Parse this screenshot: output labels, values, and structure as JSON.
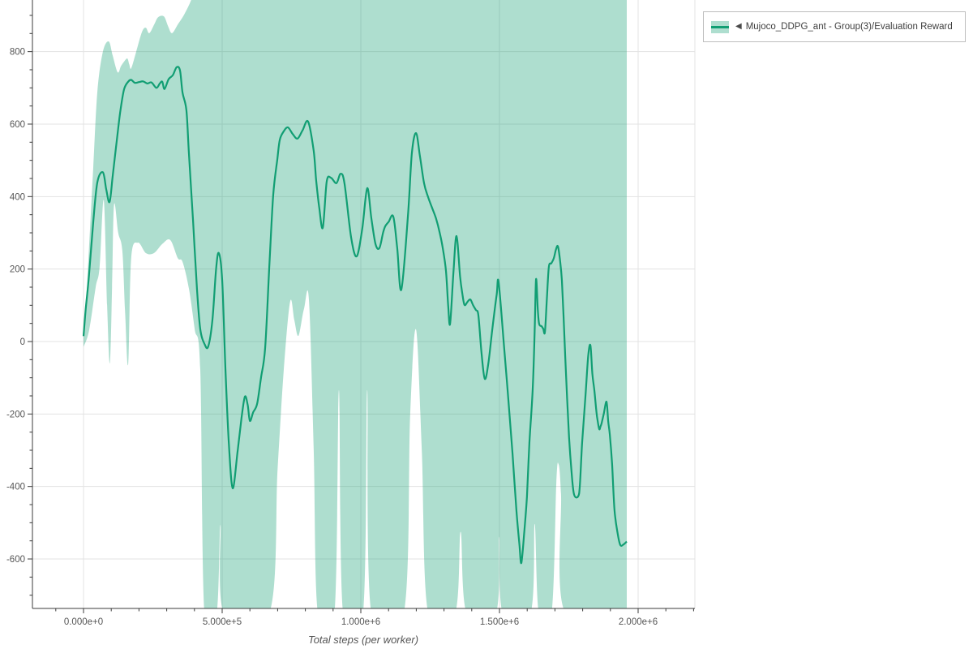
{
  "legend": {
    "arrow": "◀",
    "label": "Mujoco_DDPG_ant - Group(3)/Evaluation Reward"
  },
  "axes": {
    "x": {
      "title": "Total steps (per worker)",
      "major_ticks_k": [
        0,
        500,
        1000,
        1500,
        2000
      ],
      "tick_labels": [
        "0.000e+0",
        "5.000e+5",
        "1.000e+6",
        "1.500e+6",
        "2.000e+6"
      ],
      "minor_step_k": 100,
      "minor_range_k": [
        -100,
        2200
      ]
    },
    "y": {
      "major_ticks": [
        800,
        600,
        400,
        200,
        0,
        -200,
        -400,
        -600
      ],
      "tick_labels": [
        "800",
        "600",
        "400",
        "200",
        "0",
        "-200",
        "-400",
        "-600"
      ],
      "minor_step": 50,
      "minor_range": [
        -700,
        900
      ]
    }
  },
  "colors": {
    "line": "#119e73",
    "band": "rgba(17,158,115,0.34)",
    "grid": "#e3e3e3",
    "axis": "#3b3b3b",
    "tick_label": "#555555"
  },
  "chart_data": {
    "type": "line",
    "title": "",
    "xlabel": "Total steps (per worker)",
    "ylabel": "",
    "legend_position": "top-right",
    "grid": true,
    "x_unit": "steps (values below in thousands of steps)",
    "xlim_k": [
      -184,
      2205
    ],
    "ylim": [
      -736,
      945
    ],
    "series": [
      {
        "name": "Mujoco_DDPG_ant - Group(3)/Evaluation Reward",
        "mean": [
          [
            0,
            15
          ],
          [
            8,
            90
          ],
          [
            20,
            184
          ],
          [
            35,
            330
          ],
          [
            50,
            440
          ],
          [
            70,
            467
          ],
          [
            82,
            420
          ],
          [
            94,
            385
          ],
          [
            105,
            455
          ],
          [
            117,
            535
          ],
          [
            132,
            631
          ],
          [
            146,
            695
          ],
          [
            161,
            717
          ],
          [
            172,
            722
          ],
          [
            185,
            714
          ],
          [
            200,
            716
          ],
          [
            215,
            718
          ],
          [
            230,
            712
          ],
          [
            245,
            715
          ],
          [
            263,
            700
          ],
          [
            275,
            712
          ],
          [
            284,
            717
          ],
          [
            292,
            697
          ],
          [
            307,
            724
          ],
          [
            322,
            735
          ],
          [
            336,
            757
          ],
          [
            348,
            748
          ],
          [
            357,
            687
          ],
          [
            371,
            638
          ],
          [
            380,
            519
          ],
          [
            395,
            333
          ],
          [
            409,
            146
          ],
          [
            421,
            34
          ],
          [
            437,
            -8
          ],
          [
            450,
            -13
          ],
          [
            465,
            60
          ],
          [
            478,
            200
          ],
          [
            488,
            244
          ],
          [
            500,
            170
          ],
          [
            512,
            -80
          ],
          [
            524,
            -280
          ],
          [
            538,
            -405
          ],
          [
            556,
            -300
          ],
          [
            570,
            -210
          ],
          [
            582,
            -152
          ],
          [
            592,
            -175
          ],
          [
            600,
            -219
          ],
          [
            612,
            -195
          ],
          [
            626,
            -172
          ],
          [
            640,
            -100
          ],
          [
            655,
            -18
          ],
          [
            670,
            206
          ],
          [
            684,
            403
          ],
          [
            699,
            504
          ],
          [
            708,
            557
          ],
          [
            722,
            580
          ],
          [
            737,
            591
          ],
          [
            755,
            572
          ],
          [
            772,
            560
          ],
          [
            790,
            583
          ],
          [
            810,
            607
          ],
          [
            830,
            526
          ],
          [
            839,
            445
          ],
          [
            850,
            370
          ],
          [
            863,
            314
          ],
          [
            877,
            441
          ],
          [
            892,
            452
          ],
          [
            912,
            437
          ],
          [
            927,
            463
          ],
          [
            941,
            437
          ],
          [
            965,
            288
          ],
          [
            985,
            235
          ],
          [
            1005,
            310
          ],
          [
            1023,
            423
          ],
          [
            1038,
            340
          ],
          [
            1053,
            269
          ],
          [
            1067,
            258
          ],
          [
            1080,
            300
          ],
          [
            1088,
            318
          ],
          [
            1100,
            330
          ],
          [
            1117,
            345
          ],
          [
            1131,
            260
          ],
          [
            1146,
            143
          ],
          [
            1170,
            347
          ],
          [
            1184,
            519
          ],
          [
            1199,
            575
          ],
          [
            1213,
            513
          ],
          [
            1228,
            437
          ],
          [
            1242,
            400
          ],
          [
            1257,
            369
          ],
          [
            1271,
            340
          ],
          [
            1284,
            302
          ],
          [
            1295,
            260
          ],
          [
            1307,
            195
          ],
          [
            1315,
            100
          ],
          [
            1322,
            49
          ],
          [
            1334,
            190
          ],
          [
            1345,
            291
          ],
          [
            1358,
            180
          ],
          [
            1366,
            132
          ],
          [
            1374,
            101
          ],
          [
            1385,
            110
          ],
          [
            1395,
            116
          ],
          [
            1405,
            100
          ],
          [
            1415,
            87
          ],
          [
            1424,
            72
          ],
          [
            1435,
            -30
          ],
          [
            1447,
            -103
          ],
          [
            1460,
            -60
          ],
          [
            1475,
            40
          ],
          [
            1490,
            130
          ],
          [
            1497,
            163
          ],
          [
            1517,
            -18
          ],
          [
            1532,
            -159
          ],
          [
            1547,
            -309
          ],
          [
            1561,
            -466
          ],
          [
            1572,
            -560
          ],
          [
            1579,
            -611
          ],
          [
            1590,
            -520
          ],
          [
            1599,
            -428
          ],
          [
            1608,
            -280
          ],
          [
            1620,
            -130
          ],
          [
            1627,
            30
          ],
          [
            1632,
            172
          ],
          [
            1638,
            90
          ],
          [
            1643,
            49
          ],
          [
            1652,
            42
          ],
          [
            1658,
            35
          ],
          [
            1664,
            27
          ],
          [
            1671,
            120
          ],
          [
            1678,
            206
          ],
          [
            1687,
            216
          ],
          [
            1696,
            230
          ],
          [
            1704,
            255
          ],
          [
            1711,
            262
          ],
          [
            1719,
            220
          ],
          [
            1725,
            168
          ],
          [
            1731,
            72
          ],
          [
            1740,
            -92
          ],
          [
            1751,
            -264
          ],
          [
            1760,
            -360
          ],
          [
            1769,
            -422
          ],
          [
            1784,
            -427
          ],
          [
            1790,
            -395
          ],
          [
            1798,
            -280
          ],
          [
            1810,
            -152
          ],
          [
            1820,
            -40
          ],
          [
            1828,
            -11
          ],
          [
            1835,
            -90
          ],
          [
            1842,
            -134
          ],
          [
            1849,
            -190
          ],
          [
            1854,
            -219
          ],
          [
            1860,
            -242
          ],
          [
            1864,
            -235
          ],
          [
            1868,
            -226
          ],
          [
            1876,
            -200
          ],
          [
            1886,
            -166
          ],
          [
            1892,
            -220
          ],
          [
            1898,
            -257
          ],
          [
            1906,
            -338
          ],
          [
            1915,
            -466
          ],
          [
            1927,
            -533
          ],
          [
            1936,
            -562
          ],
          [
            1947,
            -560
          ],
          [
            1959,
            -552
          ]
        ],
        "band_lower": [
          [
            0,
            -15
          ],
          [
            20,
            30
          ],
          [
            44,
            150
          ],
          [
            58,
            205
          ],
          [
            73,
            390
          ],
          [
            85,
            100
          ],
          [
            95,
            -60
          ],
          [
            103,
            150
          ],
          [
            110,
            377
          ],
          [
            125,
            300
          ],
          [
            140,
            250
          ],
          [
            150,
            80
          ],
          [
            161,
            -62
          ],
          [
            172,
            230
          ],
          [
            196,
            273
          ],
          [
            225,
            244
          ],
          [
            254,
            244
          ],
          [
            285,
            270
          ],
          [
            313,
            280
          ],
          [
            340,
            230
          ],
          [
            357,
            220
          ],
          [
            380,
            146
          ],
          [
            401,
            34
          ],
          [
            421,
            -78
          ],
          [
            436,
            -750
          ],
          [
            480,
            -750
          ],
          [
            494,
            -506
          ],
          [
            507,
            -750
          ],
          [
            670,
            -750
          ],
          [
            700,
            -350
          ],
          [
            722,
            -80
          ],
          [
            745,
            110
          ],
          [
            760,
            60
          ],
          [
            775,
            16
          ],
          [
            795,
            90
          ],
          [
            813,
            115
          ],
          [
            830,
            -300
          ],
          [
            845,
            -750
          ],
          [
            905,
            -750
          ],
          [
            921,
            -134
          ],
          [
            936,
            -750
          ],
          [
            1008,
            -750
          ],
          [
            1023,
            -134
          ],
          [
            1038,
            -750
          ],
          [
            1155,
            -750
          ],
          [
            1178,
            -200
          ],
          [
            1199,
            33
          ],
          [
            1220,
            -300
          ],
          [
            1243,
            -750
          ],
          [
            1340,
            -750
          ],
          [
            1360,
            -525
          ],
          [
            1382,
            -750
          ],
          [
            1487,
            -750
          ],
          [
            1499,
            -539
          ],
          [
            1512,
            -750
          ],
          [
            1612,
            -750
          ],
          [
            1627,
            -503
          ],
          [
            1642,
            -750
          ],
          [
            1688,
            -750
          ],
          [
            1705,
            -390
          ],
          [
            1713,
            -338
          ],
          [
            1722,
            -420
          ],
          [
            1738,
            -750
          ],
          [
            1959,
            -750
          ]
        ],
        "band_upper": [
          [
            0,
            40
          ],
          [
            10,
            120
          ],
          [
            20,
            260
          ],
          [
            35,
            480
          ],
          [
            50,
            690
          ],
          [
            70,
            800
          ],
          [
            91,
            828
          ],
          [
            105,
            790
          ],
          [
            123,
            743
          ],
          [
            135,
            760
          ],
          [
            146,
            772
          ],
          [
            158,
            781
          ],
          [
            165,
            765
          ],
          [
            172,
            754
          ],
          [
            190,
            800
          ],
          [
            211,
            855
          ],
          [
            225,
            866
          ],
          [
            237,
            851
          ],
          [
            255,
            875
          ],
          [
            269,
            895
          ],
          [
            290,
            897
          ],
          [
            305,
            870
          ],
          [
            319,
            851
          ],
          [
            340,
            875
          ],
          [
            365,
            905
          ],
          [
            392,
            950
          ],
          [
            420,
            1020
          ],
          [
            800,
            1020
          ],
          [
            1300,
            1020
          ],
          [
            1959,
            1020
          ]
        ]
      }
    ]
  }
}
